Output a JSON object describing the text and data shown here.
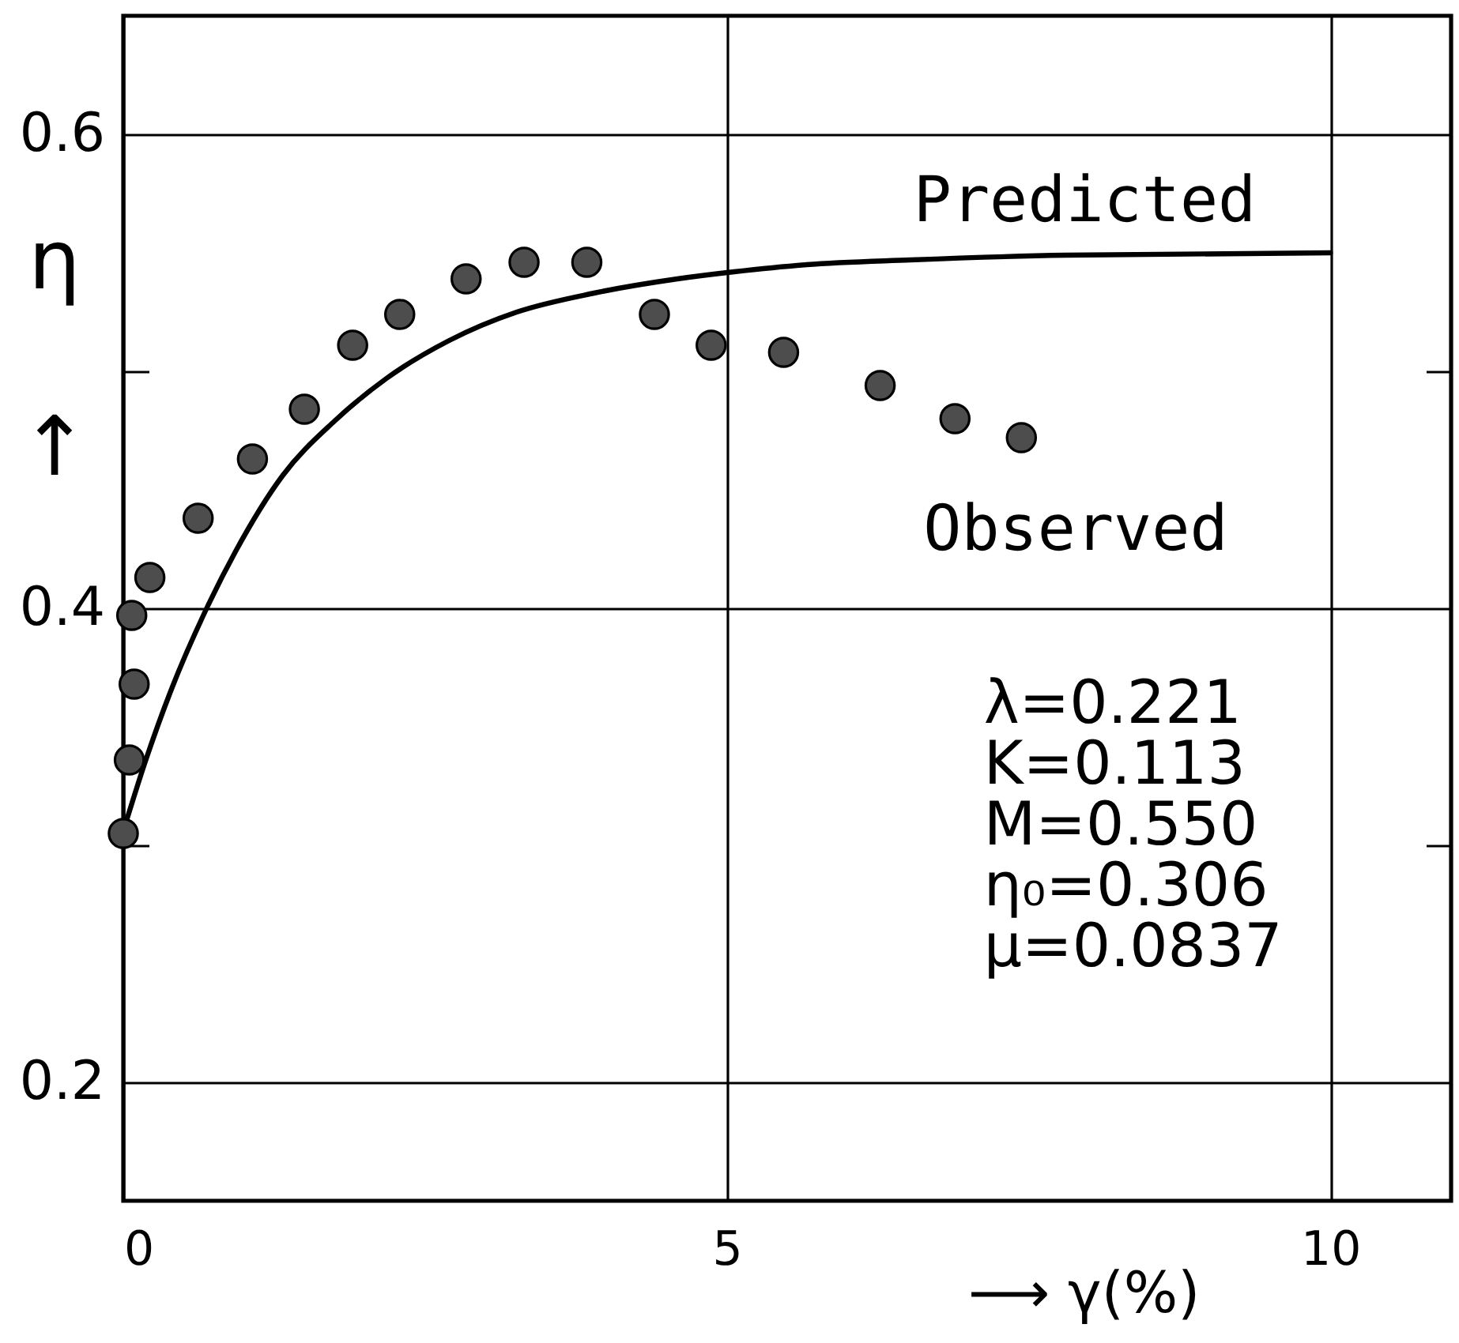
{
  "chart_data": {
    "type": "scatter",
    "xlabel": "⟶ γ(%)",
    "ylabel": "η\n↑",
    "xlim": [
      0,
      11
    ],
    "xticks": [
      0,
      5,
      10
    ],
    "ylim": [
      0.15,
      0.65
    ],
    "yticks": [
      0.2,
      {
        "value": 0.3,
        "label": null
      },
      0.4,
      {
        "value": 0.5,
        "label": null
      },
      0.6
    ],
    "grid": true,
    "series": [
      {
        "name": "Predicted",
        "type": "line",
        "color": "#000000",
        "x": [
          0,
          0.18,
          0.4,
          0.7,
          0.93,
          1.32,
          1.75,
          2.18,
          2.7,
          3.26,
          3.9,
          4.59,
          5.06,
          5.66,
          6.52,
          7.81,
          10
        ],
        "values": [
          0.306,
          0.335,
          0.366,
          0.401,
          0.424,
          0.456,
          0.479,
          0.497,
          0.513,
          0.525,
          0.533,
          0.539,
          0.542,
          0.545,
          0.547,
          0.549,
          0.55
        ]
      },
      {
        "name": "Observed",
        "color": "#4d4d4d",
        "marker": "circle",
        "x": [
          0,
          0.05,
          0.09,
          0.07,
          0.22,
          0.62,
          1.07,
          1.5,
          1.9,
          2.29,
          2.84,
          3.32,
          3.84,
          4.4,
          4.87,
          5.47,
          6.27,
          6.89,
          7.44
        ],
        "values": [
          0.305,
          0.336,
          0.368,
          0.397,
          0.413,
          0.438,
          0.463,
          0.484,
          0.511,
          0.524,
          0.539,
          0.546,
          0.546,
          0.524,
          0.511,
          0.508,
          0.494,
          0.48,
          0.472
        ]
      }
    ],
    "annotations": [
      "λ=0.221",
      "K=0.113",
      "M=0.550",
      "η₀=0.306",
      "μ=0.0837"
    ]
  }
}
